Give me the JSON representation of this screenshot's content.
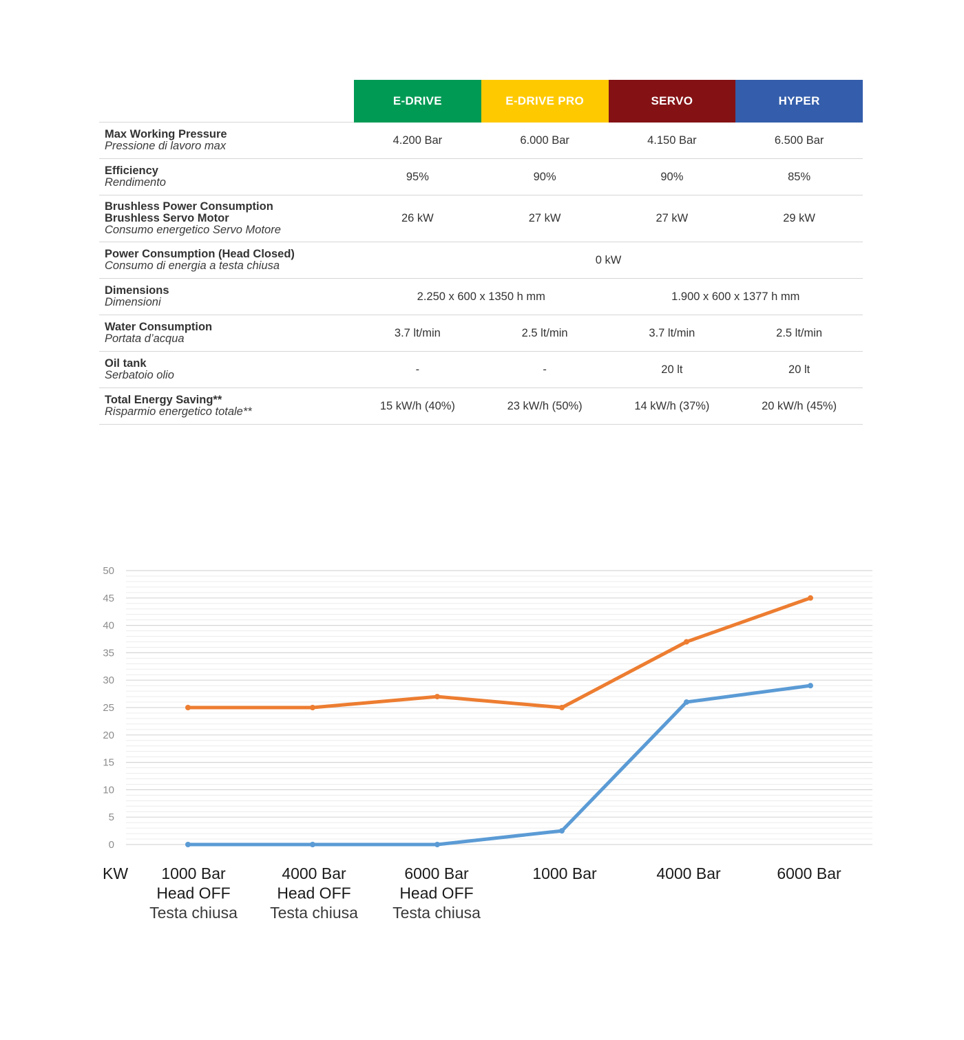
{
  "table": {
    "models": [
      {
        "name": "E-DRIVE",
        "color": "#009a55"
      },
      {
        "name": "E-DRIVE PRO",
        "color": "#ffc900"
      },
      {
        "name": "SERVO",
        "color": "#841215"
      },
      {
        "name": "HYPER",
        "color": "#345eab"
      }
    ],
    "rows": [
      {
        "en": [
          "Max Working Pressure"
        ],
        "it": "Pressione di lavoro max",
        "cells": [
          {
            "v": "4.200 Bar",
            "span": 1
          },
          {
            "v": "6.000 Bar",
            "span": 1
          },
          {
            "v": "4.150 Bar",
            "span": 1
          },
          {
            "v": "6.500 Bar",
            "span": 1
          }
        ]
      },
      {
        "en": [
          "Efficiency"
        ],
        "it": "Rendimento",
        "cells": [
          {
            "v": "95%",
            "span": 1
          },
          {
            "v": "90%",
            "span": 1
          },
          {
            "v": "90%",
            "span": 1
          },
          {
            "v": "85%",
            "span": 1
          }
        ]
      },
      {
        "en": [
          "Brushless Power Consumption",
          "Brushless Servo Motor"
        ],
        "it": "Consumo energetico Servo Motore",
        "cells": [
          {
            "v": "26 kW",
            "span": 1
          },
          {
            "v": "27 kW",
            "span": 1
          },
          {
            "v": "27 kW",
            "span": 1
          },
          {
            "v": "29 kW",
            "span": 1
          }
        ]
      },
      {
        "en": [
          "Power Consumption  (Head Closed)"
        ],
        "it": "Consumo di energia a testa chiusa",
        "cells": [
          {
            "v": "0 kW",
            "span": 4
          }
        ]
      },
      {
        "en": [
          "Dimensions"
        ],
        "it": "Dimensioni",
        "cells": [
          {
            "v": "2.250 x 600 x 1350 h mm",
            "span": 2
          },
          {
            "v": "1.900 x 600 x 1377 h mm",
            "span": 2
          }
        ]
      },
      {
        "en": [
          "Water Consumption"
        ],
        "it": "Portata d’acqua",
        "cells": [
          {
            "v": "3.7 lt/min",
            "span": 1
          },
          {
            "v": "2.5 lt/min",
            "span": 1
          },
          {
            "v": "3.7 lt/min",
            "span": 1
          },
          {
            "v": "2.5 lt/min",
            "span": 1
          }
        ]
      },
      {
        "en": [
          "Oil tank"
        ],
        "it": "Serbatoio olio",
        "cells": [
          {
            "v": "-",
            "span": 1
          },
          {
            "v": "-",
            "span": 1
          },
          {
            "v": "20 lt",
            "span": 1
          },
          {
            "v": "20 lt",
            "span": 1
          }
        ]
      },
      {
        "en": [
          "Total Energy Saving**"
        ],
        "it": "Risparmio energetico totale**",
        "cells": [
          {
            "v": "15 kW/h (40%)",
            "span": 1
          },
          {
            "v": "23 kW/h (50%)",
            "span": 1
          },
          {
            "v": "14 kW/h (37%)",
            "span": 1
          },
          {
            "v": "20 kW/h (45%)",
            "span": 1
          }
        ]
      }
    ]
  },
  "chart_data": {
    "type": "line",
    "ylabel": "KW",
    "ylim": [
      0,
      50
    ],
    "yticks": [
      0,
      5,
      10,
      15,
      20,
      25,
      30,
      35,
      40,
      45,
      50
    ],
    "grid": true,
    "categories": [
      {
        "lines": [
          "1000 Bar",
          "Head OFF",
          "Testa chiusa"
        ]
      },
      {
        "lines": [
          "4000 Bar",
          "Head OFF",
          "Testa chiusa"
        ]
      },
      {
        "lines": [
          "6000 Bar",
          "Head OFF",
          "Testa chiusa"
        ]
      },
      {
        "lines": [
          "1000 Bar"
        ]
      },
      {
        "lines": [
          "4000 Bar"
        ]
      },
      {
        "lines": [
          "6000 Bar"
        ]
      }
    ],
    "series": [
      {
        "name": "orange",
        "color": "#ed7d31",
        "values": [
          25,
          25,
          27,
          25,
          37,
          45
        ]
      },
      {
        "name": "blue",
        "color": "#5b9bd5",
        "values": [
          0,
          0,
          0,
          2.5,
          26,
          29
        ]
      }
    ]
  }
}
